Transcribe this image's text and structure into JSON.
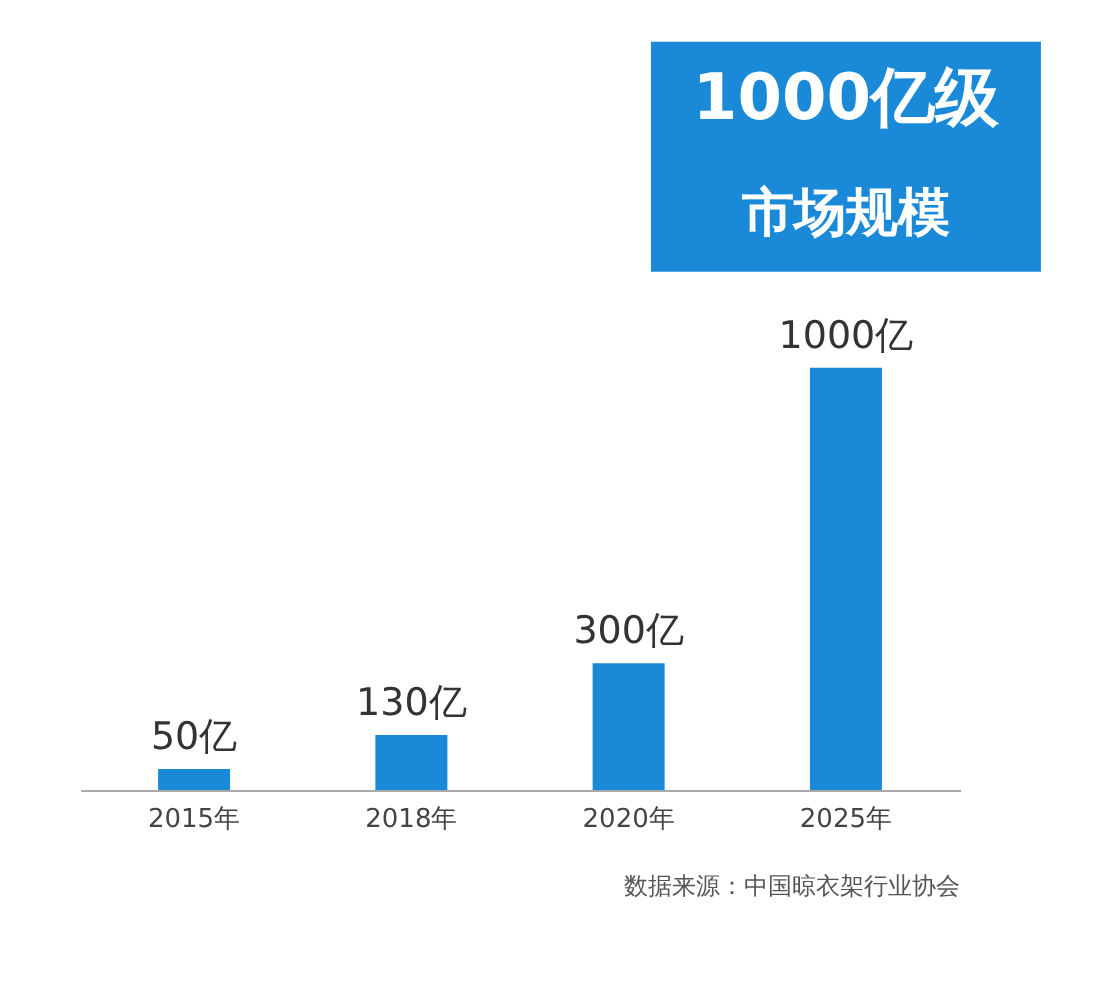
{
  "chart_data": {
    "type": "bar",
    "categories": [
      "2015年",
      "2018年",
      "2020年",
      "2025年"
    ],
    "values": [
      50,
      130,
      300,
      1000
    ],
    "value_labels": [
      "50亿",
      "130亿",
      "300亿",
      "1000亿"
    ],
    "color": "#1a8ad8",
    "grid": false,
    "annotations": [
      "1000亿级",
      "市场规模",
      "数据来源：中国晾衣架行业协会"
    ]
  }
}
